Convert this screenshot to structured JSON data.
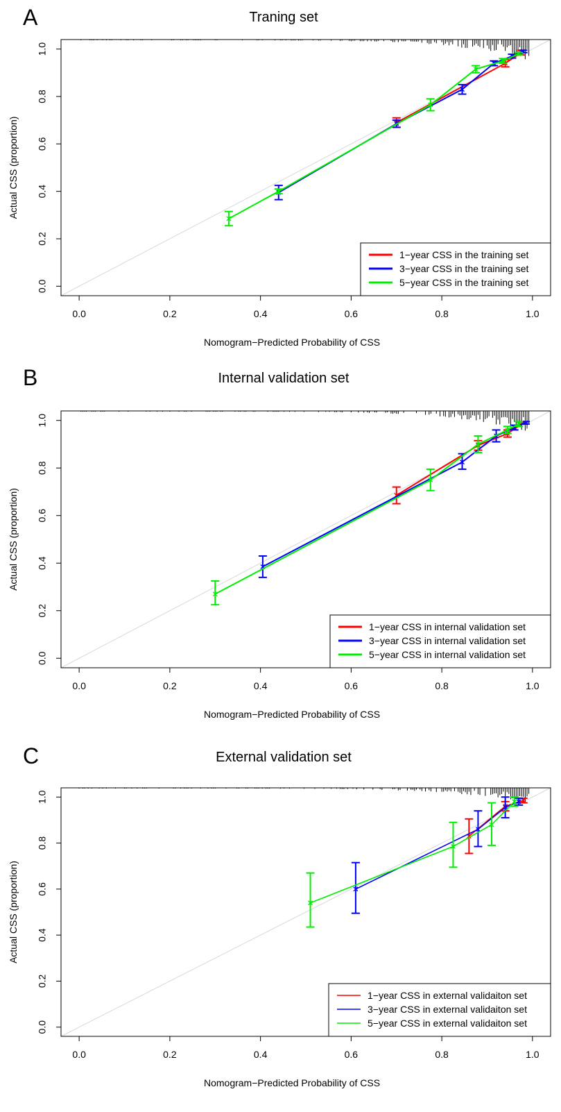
{
  "chart_data": [
    {
      "type": "line",
      "panel_letter": "A",
      "title": "Traning set",
      "xlabel": "Nomogram−Predicted Probability of CSS",
      "ylabel": "Actual CSS (proportion)",
      "xlim": [
        -0.04,
        1.04
      ],
      "ylim": [
        -0.04,
        1.04
      ],
      "x_ticks": [
        "0.0",
        "0.2",
        "0.4",
        "0.6",
        "0.8",
        "1.0"
      ],
      "y_ticks": [
        "0.0",
        "0.2",
        "0.4",
        "0.6",
        "0.8",
        "1.0"
      ],
      "reference_line": "diagonal",
      "legend_position": "bottom-right",
      "series": [
        {
          "name": "1−year CSS in the training set",
          "color": "#ff0000",
          "points": [
            {
              "x": 0.7,
              "y": 0.69,
              "lo": 0.67,
              "hi": 0.71
            },
            {
              "x": 0.94,
              "y": 0.94,
              "lo": 0.925,
              "hi": 0.955
            },
            {
              "x": 0.975,
              "y": 0.985,
              "lo": 0.975,
              "hi": 0.995
            }
          ]
        },
        {
          "name": "3−year CSS in the training set",
          "color": "#0000ff",
          "points": [
            {
              "x": 0.44,
              "y": 0.395,
              "lo": 0.365,
              "hi": 0.425
            },
            {
              "x": 0.7,
              "y": 0.685,
              "lo": 0.67,
              "hi": 0.7
            },
            {
              "x": 0.845,
              "y": 0.83,
              "lo": 0.81,
              "hi": 0.85
            },
            {
              "x": 0.915,
              "y": 0.94,
              "lo": 0.93,
              "hi": 0.95
            },
            {
              "x": 0.955,
              "y": 0.97,
              "lo": 0.962,
              "hi": 0.978
            },
            {
              "x": 0.98,
              "y": 0.99,
              "lo": 0.985,
              "hi": 0.995
            }
          ]
        },
        {
          "name": "5−year CSS in the training set",
          "color": "#00ee00",
          "points": [
            {
              "x": 0.33,
              "y": 0.285,
              "lo": 0.255,
              "hi": 0.315
            },
            {
              "x": 0.44,
              "y": 0.4,
              "lo": 0.39,
              "hi": 0.41
            },
            {
              "x": 0.775,
              "y": 0.765,
              "lo": 0.74,
              "hi": 0.79
            },
            {
              "x": 0.875,
              "y": 0.915,
              "lo": 0.9,
              "hi": 0.93
            },
            {
              "x": 0.935,
              "y": 0.95,
              "lo": 0.94,
              "hi": 0.96
            },
            {
              "x": 0.97,
              "y": 0.98,
              "lo": 0.975,
              "hi": 0.985
            }
          ]
        }
      ]
    },
    {
      "type": "line",
      "panel_letter": "B",
      "title": "Internal validation set",
      "xlabel": "Nomogram−Predicted Probability of CSS",
      "ylabel": "Actual CSS (proportion)",
      "xlim": [
        -0.04,
        1.04
      ],
      "ylim": [
        -0.04,
        1.04
      ],
      "x_ticks": [
        "0.0",
        "0.2",
        "0.4",
        "0.6",
        "0.8",
        "1.0"
      ],
      "y_ticks": [
        "0.0",
        "0.2",
        "0.4",
        "0.6",
        "0.8",
        "1.0"
      ],
      "reference_line": "diagonal",
      "legend_position": "bottom-right",
      "series": [
        {
          "name": "1−year CSS in internal validation set",
          "color": "#ff0000",
          "points": [
            {
              "x": 0.7,
              "y": 0.685,
              "lo": 0.65,
              "hi": 0.72
            },
            {
              "x": 0.88,
              "y": 0.895,
              "lo": 0.875,
              "hi": 0.915
            },
            {
              "x": 0.945,
              "y": 0.945,
              "lo": 0.93,
              "hi": 0.96
            },
            {
              "x": 0.98,
              "y": 0.99,
              "lo": 0.985,
              "hi": 0.995
            }
          ]
        },
        {
          "name": "3−year CSS in internal validation set",
          "color": "#0000ff",
          "points": [
            {
              "x": 0.405,
              "y": 0.385,
              "lo": 0.34,
              "hi": 0.43
            },
            {
              "x": 0.845,
              "y": 0.825,
              "lo": 0.795,
              "hi": 0.86
            },
            {
              "x": 0.92,
              "y": 0.935,
              "lo": 0.91,
              "hi": 0.96
            },
            {
              "x": 0.96,
              "y": 0.97,
              "lo": 0.96,
              "hi": 0.98
            },
            {
              "x": 0.985,
              "y": 0.99,
              "lo": 0.985,
              "hi": 0.995
            }
          ]
        },
        {
          "name": "5−year CSS in internal validation set",
          "color": "#00ee00",
          "points": [
            {
              "x": 0.3,
              "y": 0.27,
              "lo": 0.225,
              "hi": 0.325
            },
            {
              "x": 0.775,
              "y": 0.75,
              "lo": 0.705,
              "hi": 0.795
            },
            {
              "x": 0.88,
              "y": 0.9,
              "lo": 0.865,
              "hi": 0.935
            },
            {
              "x": 0.945,
              "y": 0.96,
              "lo": 0.945,
              "hi": 0.975
            },
            {
              "x": 0.97,
              "y": 0.985,
              "lo": 0.975,
              "hi": 0.995
            }
          ]
        }
      ]
    },
    {
      "type": "line",
      "panel_letter": "C",
      "title": "External validation set",
      "xlabel": "Nomogram−Predicted Probability of CSS",
      "ylabel": "Actual CSS (proportion)",
      "xlim": [
        -0.04,
        1.04
      ],
      "ylim": [
        -0.04,
        1.04
      ],
      "x_ticks": [
        "0.0",
        "0.2",
        "0.4",
        "0.6",
        "0.8",
        "1.0"
      ],
      "y_ticks": [
        "0.0",
        "0.2",
        "0.4",
        "0.6",
        "0.8",
        "1.0"
      ],
      "reference_line": "diagonal",
      "legend_position": "bottom-right",
      "series": [
        {
          "name": "1−year CSS in external validaiton set",
          "color": "#ff0000",
          "points": [
            {
              "x": 0.86,
              "y": 0.83,
              "lo": 0.755,
              "hi": 0.905
            },
            {
              "x": 0.94,
              "y": 0.96,
              "lo": 0.94,
              "hi": 0.98
            },
            {
              "x": 0.98,
              "y": 0.985,
              "lo": 0.975,
              "hi": 0.995
            }
          ]
        },
        {
          "name": "3−year CSS in external validaiton set",
          "color": "#0000ff",
          "points": [
            {
              "x": 0.61,
              "y": 0.6,
              "lo": 0.495,
              "hi": 0.715
            },
            {
              "x": 0.88,
              "y": 0.86,
              "lo": 0.785,
              "hi": 0.94
            },
            {
              "x": 0.94,
              "y": 0.955,
              "lo": 0.91,
              "hi": 1.0
            },
            {
              "x": 0.97,
              "y": 0.98,
              "lo": 0.965,
              "hi": 0.995
            }
          ]
        },
        {
          "name": "5−year CSS in external validaiton set",
          "color": "#00ee00",
          "points": [
            {
              "x": 0.51,
              "y": 0.54,
              "lo": 0.435,
              "hi": 0.67
            },
            {
              "x": 0.825,
              "y": 0.785,
              "lo": 0.695,
              "hi": 0.89
            },
            {
              "x": 0.91,
              "y": 0.88,
              "lo": 0.79,
              "hi": 0.975
            },
            {
              "x": 0.96,
              "y": 0.98,
              "lo": 0.96,
              "hi": 1.0
            }
          ]
        }
      ]
    }
  ]
}
